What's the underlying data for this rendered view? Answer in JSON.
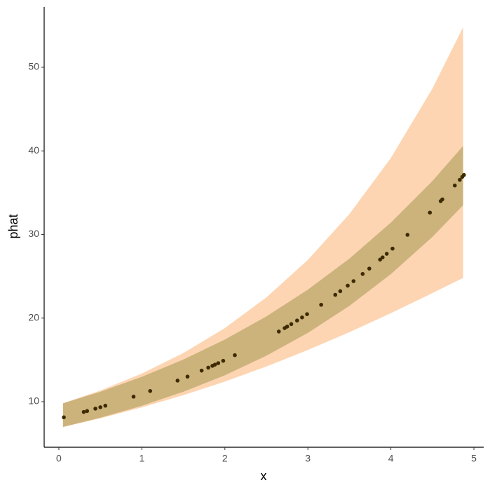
{
  "chart_data": {
    "type": "scatter",
    "xlabel": "x",
    "ylabel": "phat",
    "xlim": [
      -0.177,
      5.118
    ],
    "ylim": [
      4.55,
      57.21
    ],
    "xticks": [
      0,
      1,
      2,
      3,
      4,
      5
    ],
    "yticks": [
      10,
      20,
      30,
      40,
      50
    ],
    "bands": [
      {
        "color": "#fdd5b2",
        "x": [
          0.05,
          0.5,
          1,
          1.5,
          2,
          2.5,
          3,
          3.5,
          4,
          4.5,
          4.87
        ],
        "lower": [
          6.97,
          8.01,
          9.32,
          10.78,
          12.4,
          14.21,
          16.18,
          18.31,
          20.59,
          22.99,
          24.8
        ],
        "upper": [
          9.81,
          11.33,
          13.36,
          15.82,
          18.81,
          22.47,
          26.96,
          32.44,
          39.16,
          47.45,
          54.8
        ]
      },
      {
        "color": "#ccb37c",
        "x": [
          0.05,
          0.5,
          1,
          1.5,
          2,
          2.5,
          3,
          3.5,
          4,
          4.5,
          4.87
        ],
        "lower": [
          6.98,
          8.08,
          9.51,
          11.19,
          13.16,
          15.5,
          18.23,
          21.46,
          25.26,
          29.71,
          33.5
        ],
        "upper": [
          9.8,
          11.19,
          12.98,
          15.04,
          17.43,
          20.2,
          23.41,
          27.11,
          31.42,
          36.39,
          40.6
        ]
      }
    ],
    "points": {
      "color": "#3d2a00",
      "x": [
        0.06,
        0.3,
        0.34,
        0.44,
        0.5,
        0.56,
        0.9,
        1.1,
        1.43,
        1.55,
        1.72,
        1.8,
        1.85,
        1.88,
        1.92,
        1.98,
        2.12,
        2.65,
        2.72,
        2.75,
        2.8,
        2.87,
        2.93,
        2.99,
        3.16,
        3.33,
        3.39,
        3.48,
        3.55,
        3.66,
        3.74,
        3.87,
        3.9,
        3.95,
        4.02,
        4.2,
        4.47,
        4.6,
        4.62,
        4.77,
        4.83,
        4.86,
        4.88
      ],
      "values": [
        8.13,
        8.77,
        8.88,
        9.17,
        9.34,
        9.52,
        10.6,
        11.28,
        12.52,
        13.0,
        13.72,
        14.07,
        14.29,
        14.43,
        14.61,
        14.89,
        15.56,
        18.39,
        18.8,
        18.98,
        19.28,
        19.71,
        20.08,
        20.47,
        21.59,
        22.78,
        23.22,
        23.88,
        24.42,
        25.28,
        25.92,
        27.0,
        27.26,
        27.69,
        28.31,
        29.96,
        32.62,
        33.99,
        34.2,
        35.86,
        36.54,
        36.89,
        37.12
      ]
    }
  }
}
